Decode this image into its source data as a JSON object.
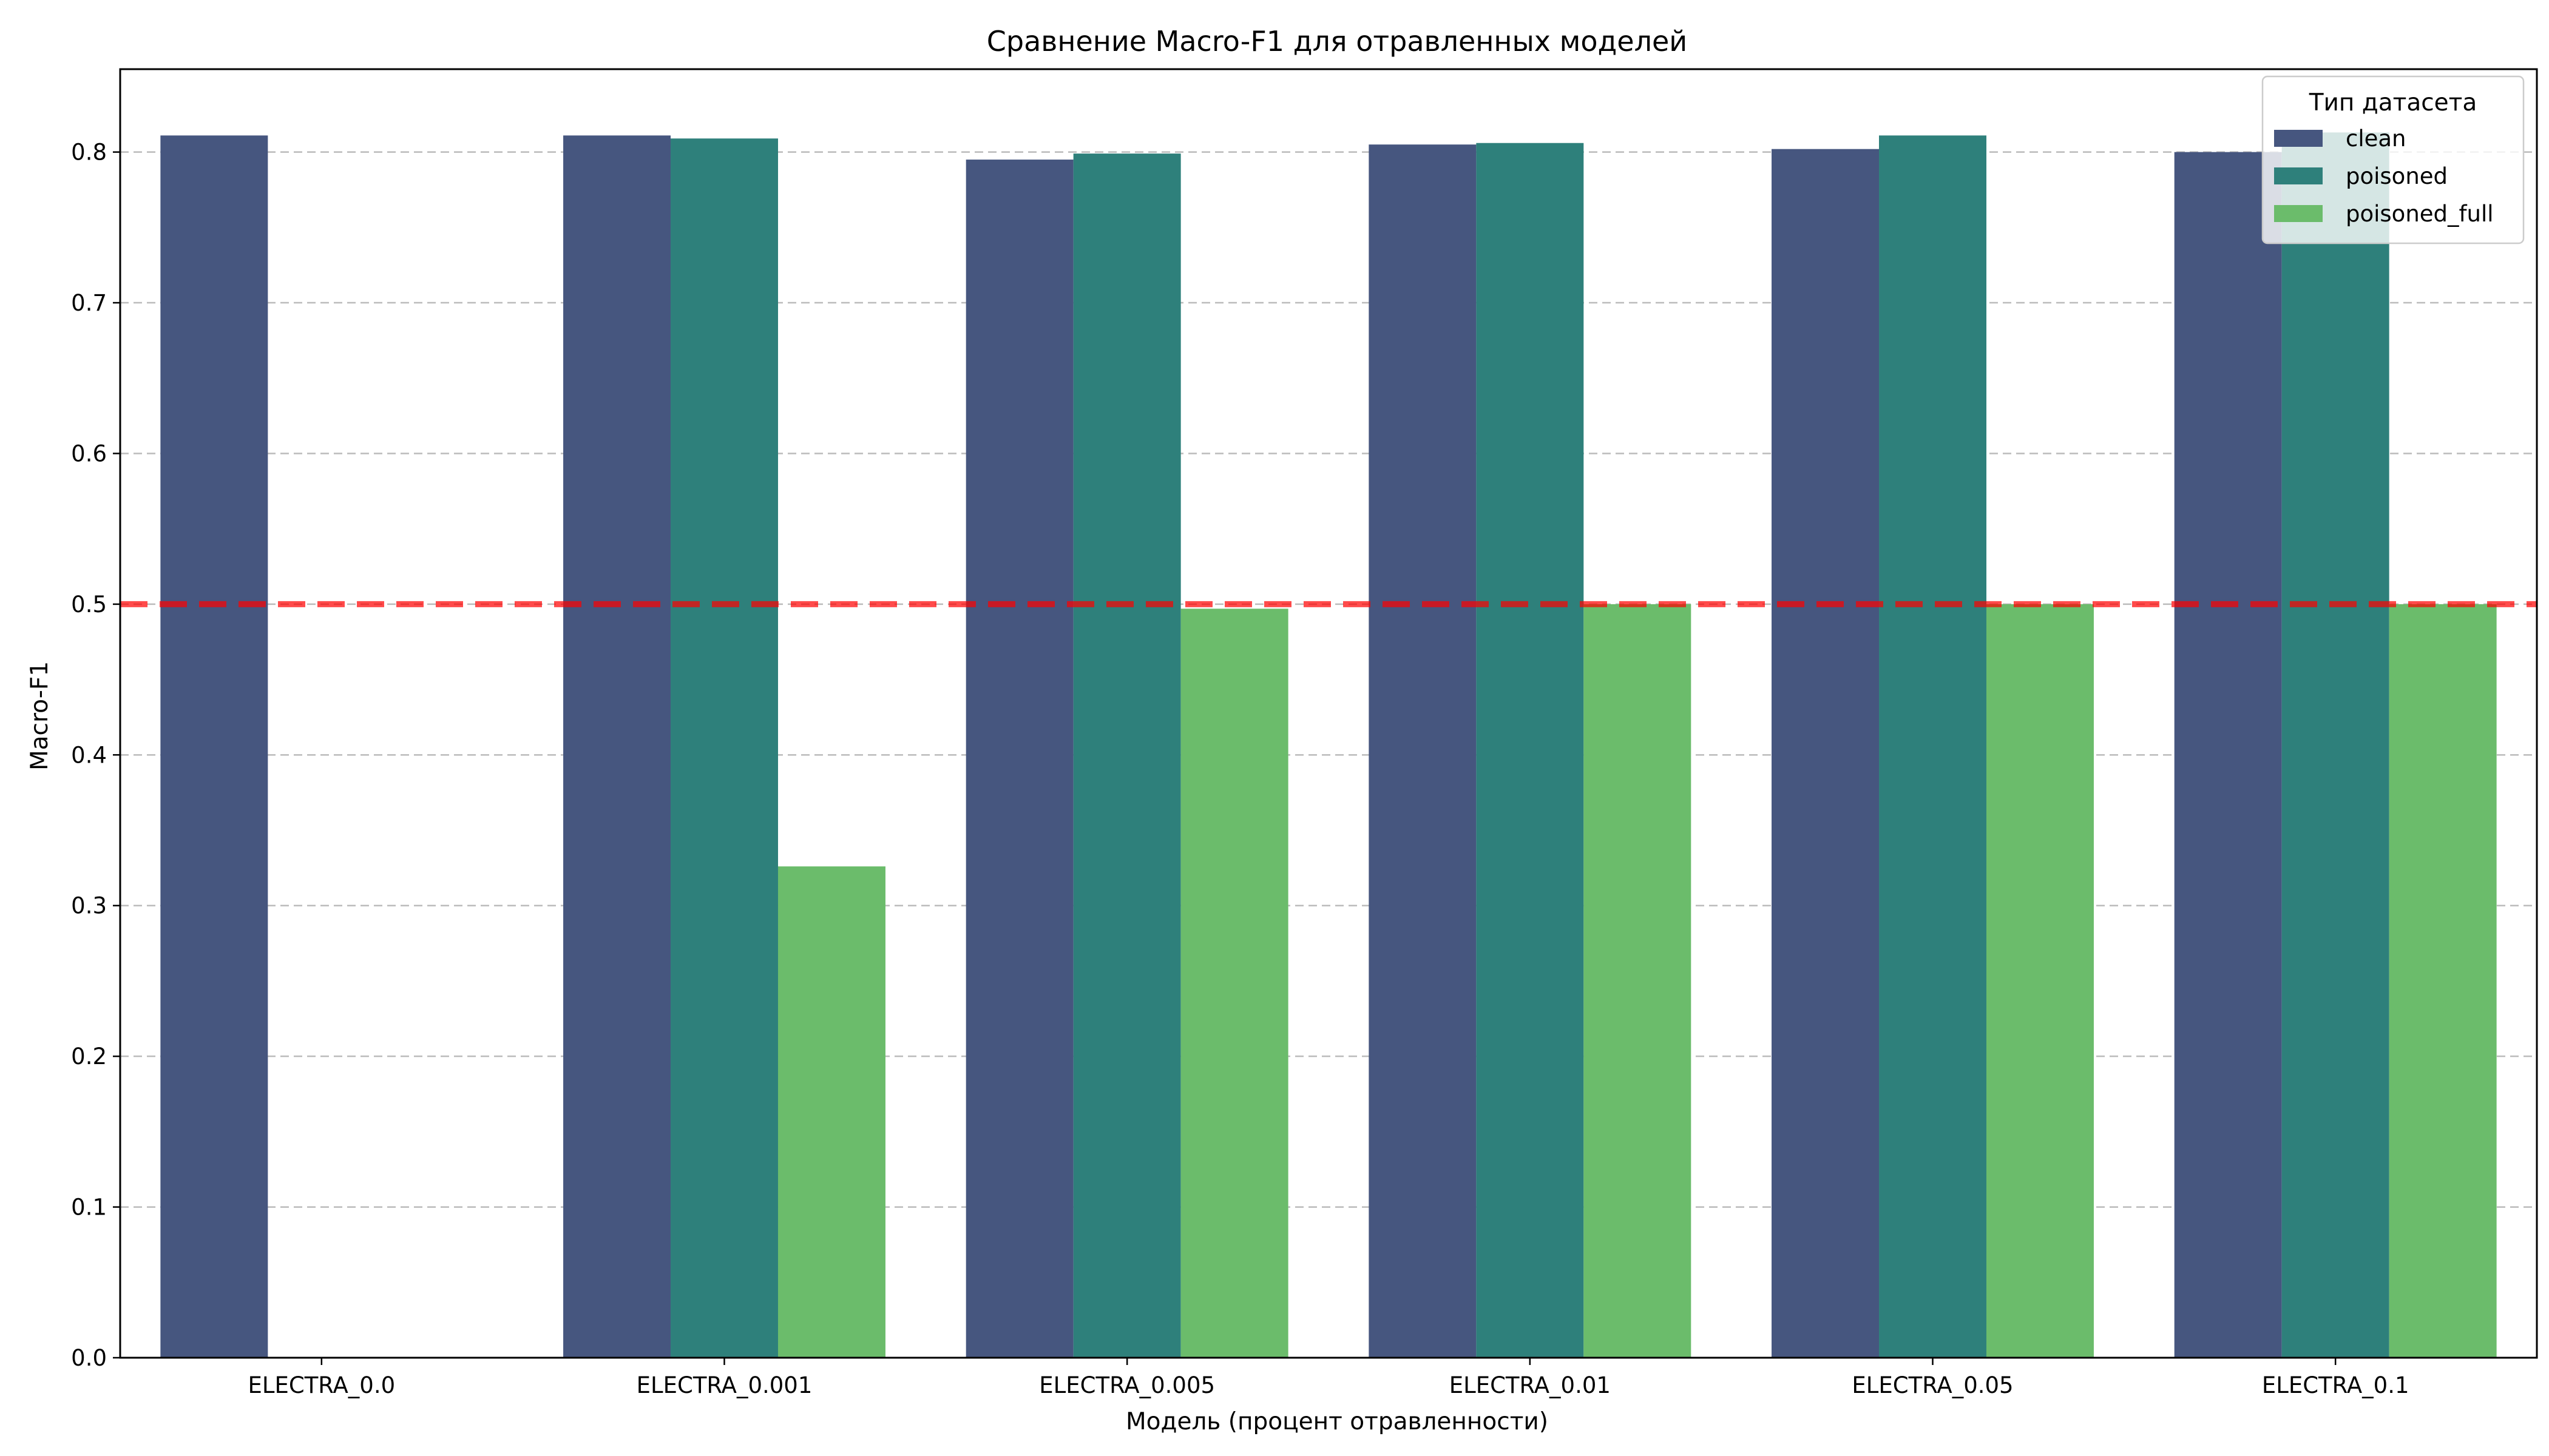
{
  "chart_data": {
    "type": "bar",
    "title": "Сравнение Macro-F1 для отравленных моделей",
    "xlabel": "Модель (процент отравленности)",
    "ylabel": "Macro-F1",
    "ylim": [
      0,
      0.855
    ],
    "yticks": [
      "0.0",
      "0.1",
      "0.2",
      "0.3",
      "0.4",
      "0.5",
      "0.6",
      "0.7",
      "0.8"
    ],
    "grid": "y-dashed",
    "categories": [
      "ELECTRA_0.0",
      "ELECTRA_0.001",
      "ELECTRA_0.005",
      "ELECTRA_0.01",
      "ELECTRA_0.05",
      "ELECTRA_0.1"
    ],
    "series": [
      {
        "name": "clean",
        "color": "#46567f",
        "values": [
          0.811,
          0.811,
          0.795,
          0.805,
          0.802,
          0.8
        ]
      },
      {
        "name": "poisoned",
        "color": "#2e807b",
        "values": [
          null,
          0.809,
          0.799,
          0.806,
          0.811,
          0.813
        ]
      },
      {
        "name": "poisoned_full",
        "color": "#6bbc6b",
        "values": [
          null,
          0.326,
          0.497,
          0.5,
          0.5,
          0.5
        ]
      }
    ],
    "reference_line": {
      "value": 0.5,
      "color": "#ff0000",
      "style": "dashed"
    },
    "legend": {
      "title": "Тип датасета",
      "placement": "top-right"
    }
  }
}
